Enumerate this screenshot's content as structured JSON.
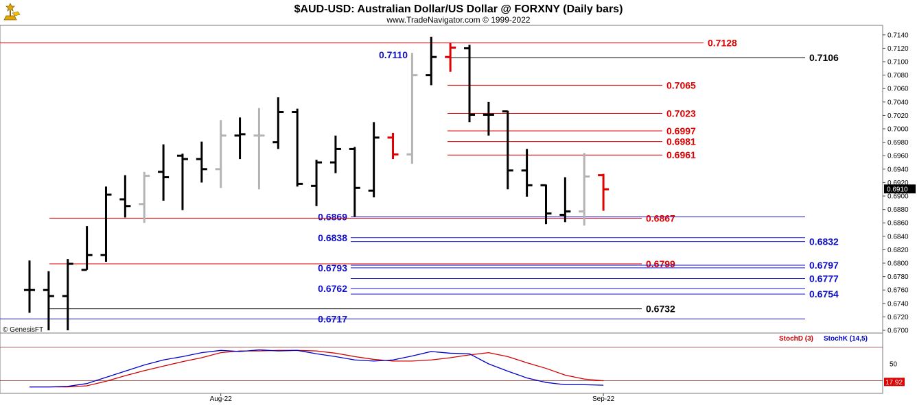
{
  "header": {
    "title": "$AUD-USD:  Australian Dollar/US Dollar @ FORXNY  (Daily bars)",
    "subtitle": "www.TradeNavigator.com © 1999-2022",
    "watermark": "© GenesisFT"
  },
  "colors": {
    "black_bar": "#000000",
    "gray_bar": "#b4b4b4",
    "red_bar": "#e00000",
    "red_level": "#e00000",
    "blue_level": "#1010c8",
    "black_level": "#000000",
    "stoch_d": "#d00000",
    "stoch_k": "#0000c8"
  },
  "chart_data": [
    {
      "type": "ohlc",
      "title": "$AUD-USD:  Australian Dollar/US Dollar @ FORXNY  (Daily bars)",
      "ylim": [
        0.67,
        0.7148
      ],
      "yticks": [
        "0.7140",
        "0.7120",
        "0.7100",
        "0.7080",
        "0.7060",
        "0.7040",
        "0.7020",
        "0.7000",
        "0.6980",
        "0.6960",
        "0.6940",
        "0.6920",
        "0.6900",
        "0.6880",
        "0.6860",
        "0.6840",
        "0.6820",
        "0.6800",
        "0.6780",
        "0.6760",
        "0.6740",
        "0.6720",
        "0.6700"
      ],
      "last_price": "0.6910",
      "bars": [
        {
          "o": 0.676,
          "h": 0.6804,
          "l": 0.6726,
          "c": 0.676,
          "color": "black"
        },
        {
          "o": 0.676,
          "h": 0.6788,
          "l": 0.67,
          "c": 0.6751,
          "color": "black"
        },
        {
          "o": 0.6751,
          "h": 0.6806,
          "l": 0.67,
          "c": 0.6799,
          "color": "black"
        },
        {
          "o": 0.679,
          "h": 0.6855,
          "l": 0.679,
          "c": 0.6812,
          "color": "black"
        },
        {
          "o": 0.6812,
          "h": 0.6914,
          "l": 0.6802,
          "c": 0.6902,
          "color": "black"
        },
        {
          "o": 0.6895,
          "h": 0.6931,
          "l": 0.6868,
          "c": 0.6885,
          "color": "black"
        },
        {
          "o": 0.6888,
          "h": 0.6936,
          "l": 0.686,
          "c": 0.693,
          "color": "gray"
        },
        {
          "o": 0.6936,
          "h": 0.6977,
          "l": 0.6893,
          "c": 0.6928,
          "color": "black"
        },
        {
          "o": 0.696,
          "h": 0.6963,
          "l": 0.6879,
          "c": 0.6955,
          "color": "black"
        },
        {
          "o": 0.6955,
          "h": 0.6981,
          "l": 0.692,
          "c": 0.694,
          "color": "black"
        },
        {
          "o": 0.694,
          "h": 0.7013,
          "l": 0.6912,
          "c": 0.699,
          "color": "gray"
        },
        {
          "o": 0.699,
          "h": 0.7017,
          "l": 0.6955,
          "c": 0.6992,
          "color": "black"
        },
        {
          "o": 0.699,
          "h": 0.7031,
          "l": 0.691,
          "c": 0.699,
          "color": "gray"
        },
        {
          "o": 0.698,
          "h": 0.7047,
          "l": 0.697,
          "c": 0.7025,
          "color": "black"
        },
        {
          "o": 0.7025,
          "h": 0.703,
          "l": 0.6914,
          "c": 0.6918,
          "color": "black"
        },
        {
          "o": 0.6915,
          "h": 0.6954,
          "l": 0.6885,
          "c": 0.695,
          "color": "black"
        },
        {
          "o": 0.695,
          "h": 0.699,
          "l": 0.6934,
          "c": 0.697,
          "color": "black"
        },
        {
          "o": 0.697,
          "h": 0.6973,
          "l": 0.6869,
          "c": 0.6912,
          "color": "black"
        },
        {
          "o": 0.6908,
          "h": 0.701,
          "l": 0.6898,
          "c": 0.6987,
          "color": "black"
        },
        {
          "o": 0.6987,
          "h": 0.6994,
          "l": 0.6955,
          "c": 0.6962,
          "color": "red"
        },
        {
          "o": 0.6962,
          "h": 0.7113,
          "l": 0.6948,
          "c": 0.708,
          "color": "gray"
        },
        {
          "o": 0.708,
          "h": 0.7137,
          "l": 0.7065,
          "c": 0.7107,
          "color": "black"
        },
        {
          "o": 0.7107,
          "h": 0.7128,
          "l": 0.7085,
          "c": 0.7121,
          "color": "red"
        },
        {
          "o": 0.712,
          "h": 0.7125,
          "l": 0.701,
          "c": 0.7021,
          "color": "black"
        },
        {
          "o": 0.7021,
          "h": 0.704,
          "l": 0.699,
          "c": 0.7021,
          "color": "black"
        },
        {
          "o": 0.7026,
          "h": 0.7027,
          "l": 0.691,
          "c": 0.6938,
          "color": "black"
        },
        {
          "o": 0.6938,
          "h": 0.697,
          "l": 0.6899,
          "c": 0.6916,
          "color": "black"
        },
        {
          "o": 0.6916,
          "h": 0.6917,
          "l": 0.6858,
          "c": 0.6874,
          "color": "black"
        },
        {
          "o": 0.6872,
          "h": 0.6928,
          "l": 0.6861,
          "c": 0.6877,
          "color": "black"
        },
        {
          "o": 0.6877,
          "h": 0.6964,
          "l": 0.6856,
          "c": 0.6929,
          "color": "gray"
        },
        {
          "o": 0.6931,
          "h": 0.6933,
          "l": 0.6878,
          "c": 0.691,
          "color": "red"
        }
      ],
      "levels": [
        {
          "value": 0.7128,
          "label": "0.7128",
          "color": "red",
          "x1": 0,
          "x2": 1025,
          "label_side": "right"
        },
        {
          "value": 0.711,
          "label": "0.7110",
          "color": "blue",
          "x1": 0,
          "x2": 0,
          "label_side": "left_only"
        },
        {
          "value": 0.7106,
          "label": "0.7106",
          "color": "black",
          "x1": 652,
          "x2": 1173,
          "label_side": "right"
        },
        {
          "value": 0.7065,
          "label": "0.7065",
          "color": "red",
          "x1": 652,
          "x2": 965,
          "label_side": "right"
        },
        {
          "value": 0.7023,
          "label": "0.7023",
          "color": "red",
          "x1": 652,
          "x2": 965,
          "label_side": "right"
        },
        {
          "value": 0.6997,
          "label": "0.6997",
          "color": "red",
          "x1": 652,
          "x2": 965,
          "label_side": "right"
        },
        {
          "value": 0.6981,
          "label": "0.6981",
          "color": "red",
          "x1": 652,
          "x2": 965,
          "label_side": "right"
        },
        {
          "value": 0.6961,
          "label": "0.6961",
          "color": "red",
          "x1": 652,
          "x2": 965,
          "label_side": "right"
        },
        {
          "value": 0.6869,
          "label": "0.6869",
          "color": "blue",
          "x1": 511,
          "x2": 1173,
          "label_side": "left"
        },
        {
          "value": 0.6867,
          "label": "0.6867",
          "color": "red",
          "x1": 72,
          "x2": 935,
          "label_side": "right"
        },
        {
          "value": 0.6838,
          "label": "0.6838",
          "color": "blue",
          "x1": 511,
          "x2": 1173,
          "label_side": "left"
        },
        {
          "value": 0.6832,
          "label": "0.6832",
          "color": "blue",
          "x1": 511,
          "x2": 1173,
          "label_side": "right"
        },
        {
          "value": 0.6799,
          "label": "0.6799",
          "color": "red",
          "x1": 72,
          "x2": 935,
          "label_side": "right"
        },
        {
          "value": 0.6797,
          "label": "0.6797",
          "color": "blue",
          "x1": 511,
          "x2": 1173,
          "label_side": "right"
        },
        {
          "value": 0.6793,
          "label": "0.6793",
          "color": "blue",
          "x1": 511,
          "x2": 1173,
          "label_side": "left"
        },
        {
          "value": 0.6777,
          "label": "0.6777",
          "color": "blue",
          "x1": 511,
          "x2": 1173,
          "label_side": "right"
        },
        {
          "value": 0.6762,
          "label": "0.6762",
          "color": "blue",
          "x1": 511,
          "x2": 1173,
          "label_side": "left"
        },
        {
          "value": 0.6754,
          "label": "0.6754",
          "color": "blue",
          "x1": 511,
          "x2": 1173,
          "label_side": "right"
        },
        {
          "value": 0.6732,
          "label": "0.6732",
          "color": "black",
          "x1": 72,
          "x2": 935,
          "label_side": "right"
        },
        {
          "value": 0.6717,
          "label": "0.6717",
          "color": "blue",
          "x1": 0,
          "x2": 1173,
          "label_side": "left"
        }
      ]
    },
    {
      "type": "line",
      "title": "Stochastic",
      "ylim": [
        0,
        100
      ],
      "ytick": "50",
      "reference_lines": [
        80,
        20
      ],
      "last_value": "17.92",
      "series": [
        {
          "name": "StochD (3)",
          "color": "red",
          "values": [
            9,
            9,
            9,
            11,
            19,
            29,
            38,
            46,
            54,
            61,
            70,
            73,
            73,
            74,
            74,
            73,
            69,
            63,
            58,
            55,
            55,
            57,
            61,
            66,
            70,
            63,
            52,
            42,
            30,
            23,
            20
          ]
        },
        {
          "name": "StochK (14,5)",
          "color": "blue",
          "values": [
            9,
            9,
            10,
            15,
            26,
            37,
            48,
            57,
            63,
            70,
            74,
            72,
            75,
            73,
            74,
            68,
            63,
            57,
            55,
            57,
            64,
            72,
            69,
            68,
            50,
            37,
            25,
            17,
            13,
            13,
            12
          ]
        }
      ],
      "xticks": [
        {
          "label": "Aug-22",
          "bar": 10
        },
        {
          "label": "Sep-22",
          "bar": 30
        }
      ]
    }
  ]
}
